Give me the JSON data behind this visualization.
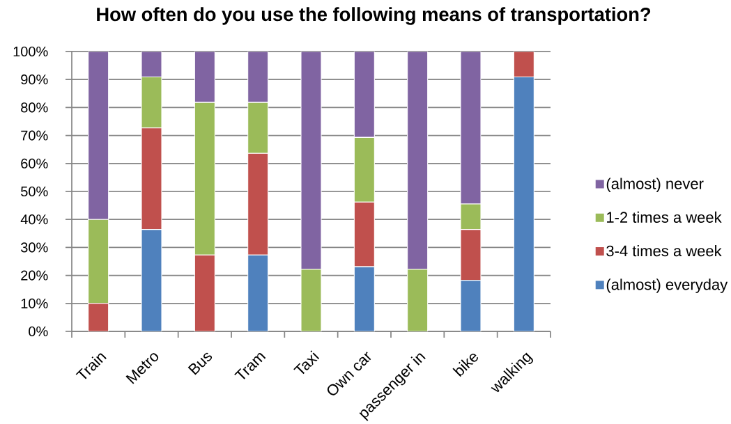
{
  "chart_data": {
    "type": "bar",
    "stacked": true,
    "title": "How often do you use the following means of transportation?",
    "categories": [
      "Train",
      "Metro",
      "Bus",
      "Tram",
      "Taxi",
      "Own car",
      "passenger in",
      "bike",
      "walking"
    ],
    "series": [
      {
        "name": "(almost) everyday",
        "color": "#4f81bd",
        "values": [
          0,
          36.4,
          0,
          27.3,
          0,
          23.1,
          0,
          18.2,
          90.9
        ]
      },
      {
        "name": "3-4 times a week",
        "color": "#c0504d",
        "values": [
          10,
          36.3,
          27.3,
          36.3,
          0,
          23.1,
          0,
          18.2,
          9.1
        ]
      },
      {
        "name": "1-2 times a week",
        "color": "#9bbb59",
        "values": [
          30,
          18.2,
          54.5,
          18.2,
          22.2,
          23.1,
          22.2,
          9.1,
          0
        ]
      },
      {
        "name": "(almost) never",
        "color": "#8064a2",
        "values": [
          60,
          9.1,
          18.2,
          18.2,
          77.8,
          30.7,
          77.8,
          54.5,
          0
        ]
      }
    ],
    "ylim": [
      0,
      100
    ],
    "yticks": [
      {
        "value": 0,
        "label": "0%"
      },
      {
        "value": 10,
        "label": "10%"
      },
      {
        "value": 20,
        "label": "20%"
      },
      {
        "value": 30,
        "label": "30%"
      },
      {
        "value": 40,
        "label": "40%"
      },
      {
        "value": 50,
        "label": "50%"
      },
      {
        "value": 60,
        "label": "60%"
      },
      {
        "value": 70,
        "label": "70%"
      },
      {
        "value": 80,
        "label": "80%"
      },
      {
        "value": 90,
        "label": "90%"
      },
      {
        "value": 100,
        "label": "100%"
      }
    ],
    "grid": "y",
    "legend": "right"
  }
}
